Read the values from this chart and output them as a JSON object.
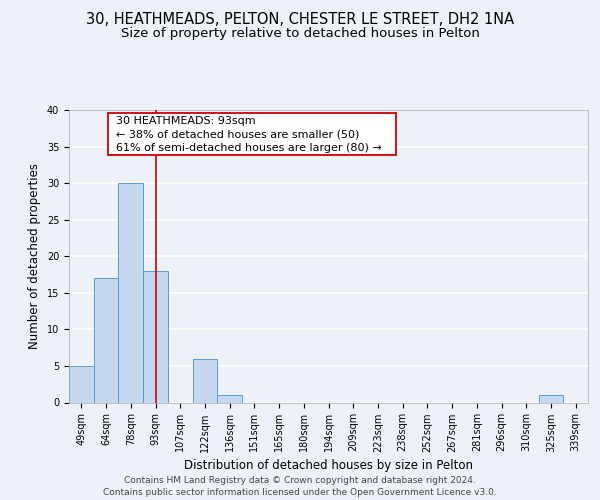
{
  "title_line1": "30, HEATHMEADS, PELTON, CHESTER LE STREET, DH2 1NA",
  "title_line2": "Size of property relative to detached houses in Pelton",
  "xlabel": "Distribution of detached houses by size in Pelton",
  "ylabel": "Number of detached properties",
  "bin_labels": [
    "49sqm",
    "64sqm",
    "78sqm",
    "93sqm",
    "107sqm",
    "122sqm",
    "136sqm",
    "151sqm",
    "165sqm",
    "180sqm",
    "194sqm",
    "209sqm",
    "223sqm",
    "238sqm",
    "252sqm",
    "267sqm",
    "281sqm",
    "296sqm",
    "310sqm",
    "325sqm",
    "339sqm"
  ],
  "bar_heights": [
    5,
    17,
    30,
    18,
    0,
    6,
    1,
    0,
    0,
    0,
    0,
    0,
    0,
    0,
    0,
    0,
    0,
    0,
    0,
    1,
    0
  ],
  "bar_color": "#c6d9f0",
  "bar_edge_color": "#5a9bd5",
  "property_line_x": 3,
  "property_line_color": "#cc0000",
  "annotation_line1": "30 HEATHMEADS: 93sqm",
  "annotation_line2": "← 38% of detached houses are smaller (50)",
  "annotation_line3": "61% of semi-detached houses are larger (80) →",
  "ylim": [
    0,
    40
  ],
  "yticks": [
    0,
    5,
    10,
    15,
    20,
    25,
    30,
    35,
    40
  ],
  "footer_line1": "Contains HM Land Registry data © Crown copyright and database right 2024.",
  "footer_line2": "Contains public sector information licensed under the Open Government Licence v3.0.",
  "bg_color": "#eef2f8",
  "grid_color": "#ffffff",
  "title_fontsize": 10.5,
  "subtitle_fontsize": 9.5,
  "axis_label_fontsize": 8.5,
  "tick_fontsize": 7,
  "footer_fontsize": 6.5,
  "annot_fontsize": 8
}
